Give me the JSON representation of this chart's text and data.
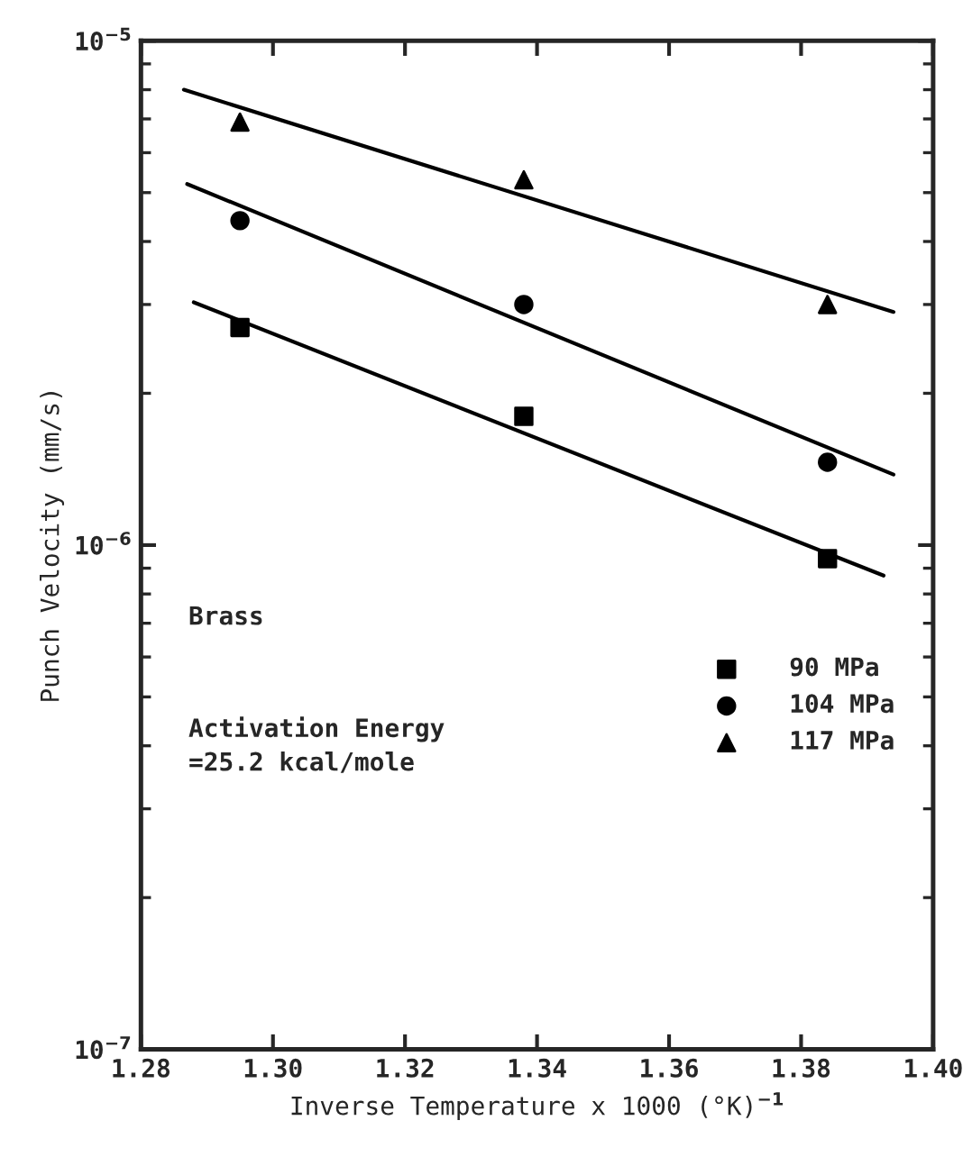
{
  "chart_data": {
    "type": "scatter",
    "xlabel": "Inverse Temperature x 1000 (°K)$^{−1}$",
    "ylabel": "Punch Velocity (mm/s)",
    "log": "y",
    "xlim": [
      1.28,
      1.4
    ],
    "xticks": [
      1.28,
      {
        "value": 1.3,
        "label": "1.30"
      },
      1.32,
      1.34,
      1.36,
      1.38,
      {
        "value": 1.4,
        "label": "1.40"
      }
    ],
    "ylim": [
      1e-07,
      1e-05
    ],
    "yticks": [
      {
        "value": 1e-07,
        "label": "10$^{−7}$"
      },
      {
        "value": 1e-06,
        "label": "10$^{−6}$"
      },
      {
        "value": 1e-05,
        "label": "10$^{−5}$"
      }
    ],
    "grid": false,
    "legend": "bottom right",
    "annotations": [
      "Brass",
      "Activation Energy\n=25.2 kcal/mole"
    ],
    "series": [
      {
        "name": "90 MPa",
        "color": "#000000",
        "marker": "square",
        "x": [
          1.295,
          1.338,
          1.384
        ],
        "values": [
          2.7e-06,
          1.8e-06,
          9.4e-07
        ]
      },
      {
        "name": "104 MPa",
        "color": "#000000",
        "marker": "circle",
        "x": [
          1.295,
          1.338,
          1.384
        ],
        "values": [
          4.4e-06,
          3e-06,
          1.46e-06
        ]
      },
      {
        "name": "117 MPa",
        "color": "#000000",
        "marker": "triangle",
        "x": [
          1.295,
          1.338,
          1.384
        ],
        "values": [
          6.9e-06,
          5.3e-06,
          3e-06
        ]
      },
      {
        "type": "line",
        "color": "#000000",
        "marker": "none",
        "line_style": "solid",
        "x": [
          1.288,
          1.3925
        ],
        "values": [
          3.03e-06,
          8.7e-07
        ]
      },
      {
        "type": "line",
        "color": "#000000",
        "marker": "none",
        "line_style": "solid",
        "x": [
          1.287,
          1.394
        ],
        "values": [
          5.2e-06,
          1.38e-06
        ]
      },
      {
        "type": "line",
        "color": "#000000",
        "marker": "none",
        "line_style": "solid",
        "x": [
          1.2865,
          1.394
        ],
        "values": [
          8e-06,
          2.9e-06
        ]
      }
    ]
  }
}
